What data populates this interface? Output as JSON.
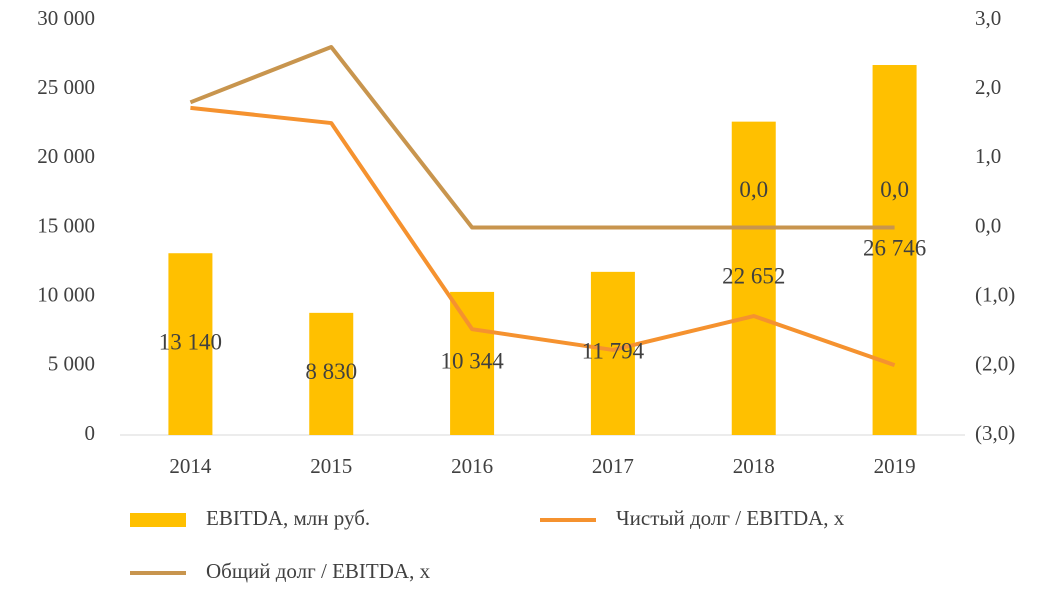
{
  "chart_data": {
    "type": "bar",
    "categories": [
      "2014",
      "2015",
      "2016",
      "2017",
      "2018",
      "2019"
    ],
    "series": [
      {
        "name": "EBITDA, млн руб.",
        "type": "bar",
        "color": "#ffc000",
        "values": [
          13140,
          8830,
          10344,
          11794,
          22652,
          26746
        ],
        "value_labels": [
          "13 140",
          "8 830",
          "10 344",
          "11 794",
          "22 652",
          "26 746"
        ]
      },
      {
        "name": "Чистый долг / EBITDA, x",
        "type": "line",
        "axis": "y2",
        "color": "#f5922f",
        "values": [
          1.73,
          1.51,
          -1.47,
          -1.77,
          -1.28,
          -1.99
        ]
      },
      {
        "name": "Общий долг / EBITDA, x",
        "type": "line",
        "axis": "y2",
        "color": "#c8954e",
        "values": [
          1.81,
          2.61,
          0.0,
          0.0,
          0.0,
          0.0
        ],
        "value_labels": [
          null,
          null,
          null,
          null,
          "0,0",
          "0,0"
        ]
      }
    ],
    "ylim": [
      0,
      30000
    ],
    "yticks": [
      0,
      {
        "value": 5000,
        "label": "5 000"
      },
      {
        "value": 10000,
        "label": "10 000"
      },
      {
        "value": 15000,
        "label": "15 000"
      },
      {
        "value": 20000,
        "label": "20 000"
      },
      {
        "value": 25000,
        "label": "25 000"
      },
      {
        "value": 30000,
        "label": "30 000"
      }
    ],
    "y2lim": [
      -3,
      3
    ],
    "y2ticks": [
      {
        "value": -3,
        "label": "(3,0)"
      },
      {
        "value": -2,
        "label": "(2,0)"
      },
      {
        "value": -1,
        "label": "(1,0)"
      },
      {
        "value": 0,
        "label": "0,0"
      },
      {
        "value": 1,
        "label": "1,0"
      },
      {
        "value": 2,
        "label": "2,0"
      },
      {
        "value": 3,
        "label": "3,0"
      }
    ],
    "grid": false,
    "legend": "bottom"
  }
}
